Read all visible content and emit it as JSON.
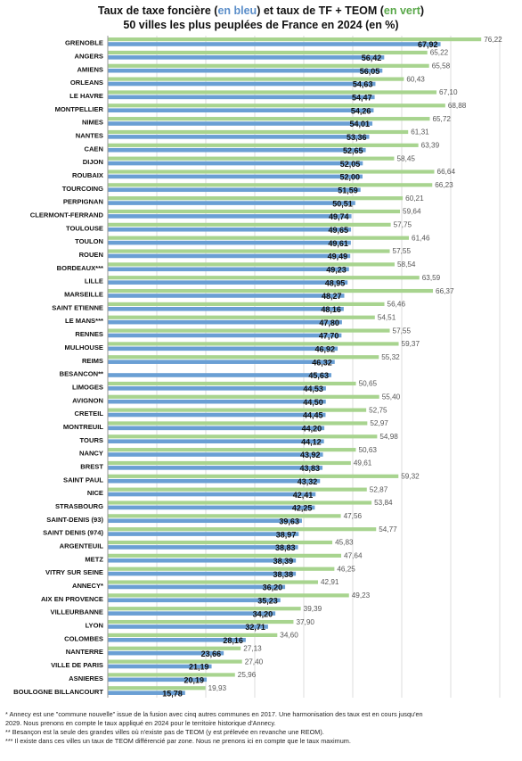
{
  "title": {
    "line1_part1": "Taux de taxe foncière (",
    "line1_blue": "en bleu",
    "line1_part2": ") et taux de TF + TEOM (",
    "line1_green": "en vert",
    "line1_part3": ")",
    "line2": "50 villes les plus peuplées de France en 2024 (en %)"
  },
  "colors": {
    "tf": "#6a9fd4",
    "tf_teom": "#a8d48f",
    "grid": "#dcdcdc"
  },
  "chart_data": {
    "type": "bar",
    "orientation": "horizontal",
    "xlim": [
      0,
      80
    ],
    "grid": true,
    "categories": [
      "GRENOBLE",
      "ANGERS",
      "AMIENS",
      "ORLEANS",
      "LE HAVRE",
      "MONTPELLIER",
      "NIMES",
      "NANTES",
      "CAEN",
      "DIJON",
      "ROUBAIX",
      "TOURCOING",
      "PERPIGNAN",
      "CLERMONT-FERRAND",
      "TOULOUSE",
      "TOULON",
      "ROUEN",
      "BORDEAUX***",
      "LILLE",
      "MARSEILLE",
      "SAINT ETIENNE",
      "LE MANS***",
      "RENNES",
      "MULHOUSE",
      "REIMS",
      "BESANCON**",
      "LIMOGES",
      "AVIGNON",
      "CRETEIL",
      "MONTREUIL",
      "TOURS",
      "NANCY",
      "BREST",
      "SAINT PAUL",
      "NICE",
      "STRASBOURG",
      "SAINT-DENIS (93)",
      "SAINT DENIS (974)",
      "ARGENTEUIL",
      "METZ",
      "VITRY SUR SEINE",
      "ANNECY*",
      "AIX EN PROVENCE",
      "VILLEURBANNE",
      "LYON",
      "COLOMBES",
      "NANTERRE",
      "VILLE DE PARIS",
      "ASNIERES",
      "BOULOGNE BILLANCOURT"
    ],
    "series": [
      {
        "values": [
          67.92,
          56.42,
          56.05,
          54.63,
          54.47,
          54.26,
          54.01,
          53.36,
          52.65,
          52.05,
          52.0,
          51.59,
          50.51,
          49.74,
          49.65,
          49.61,
          49.49,
          49.23,
          48.95,
          48.27,
          48.16,
          47.8,
          47.7,
          46.92,
          46.32,
          45.63,
          44.53,
          44.5,
          44.45,
          44.2,
          44.12,
          43.92,
          43.83,
          43.32,
          42.41,
          42.25,
          39.63,
          38.97,
          38.83,
          38.39,
          38.38,
          36.2,
          35.23,
          34.2,
          32.71,
          28.16,
          23.66,
          21.19,
          20.19,
          15.78
        ],
        "labels": [
          "67,92",
          "56,42",
          "56,05",
          "54,63",
          "54,47",
          "54,26",
          "54,01",
          "53,36",
          "52,65",
          "52,05",
          "52,00",
          "51,59",
          "50,51",
          "49,74",
          "49,65",
          "49,61",
          "49,49",
          "49,23",
          "48,95",
          "48,27",
          "48,16",
          "47,80",
          "47,70",
          "46,92",
          "46,32",
          "45,63",
          "44,53",
          "44,50",
          "44,45",
          "44,20",
          "44,12",
          "43,92",
          "43,83",
          "43,32",
          "42,41",
          "42,25",
          "39,63",
          "38,97",
          "38,83",
          "38,39",
          "38,38",
          "36,20",
          "35,23",
          "34,20",
          "32,71",
          "28,16",
          "23,66",
          "21,19",
          "20,19",
          "15,78"
        ]
      },
      {
        "values": [
          76.22,
          65.22,
          65.58,
          60.43,
          67.1,
          68.88,
          65.72,
          61.31,
          63.39,
          58.45,
          66.64,
          66.23,
          60.21,
          59.64,
          57.75,
          61.46,
          57.55,
          58.54,
          63.59,
          66.37,
          56.46,
          54.51,
          57.55,
          59.37,
          55.32,
          null,
          50.65,
          55.4,
          52.75,
          52.97,
          54.98,
          50.63,
          49.61,
          59.32,
          52.87,
          53.84,
          47.56,
          54.77,
          45.83,
          47.64,
          46.25,
          42.91,
          49.23,
          39.39,
          37.9,
          34.6,
          27.13,
          27.4,
          25.96,
          19.93
        ],
        "labels": [
          "76,22",
          "65,22",
          "65,58",
          "60,43",
          "67,10",
          "68,88",
          "65,72",
          "61,31",
          "63,39",
          "58,45",
          "66,64",
          "66,23",
          "60,21",
          "59,64",
          "57,75",
          "61,46",
          "57,55",
          "58,54",
          "63,59",
          "66,37",
          "56,46",
          "54,51",
          "57,55",
          "59,37",
          "55,32",
          "",
          "50,65",
          "55,40",
          "52,75",
          "52,97",
          "54,98",
          "50,63",
          "49,61",
          "59,32",
          "52,87",
          "53,84",
          "47,56",
          "54,77",
          "45,83",
          "47,64",
          "46,25",
          "42,91",
          "49,23",
          "39,39",
          "37,90",
          "34,60",
          "27,13",
          "27,40",
          "25,96",
          "19,93"
        ]
      }
    ]
  },
  "footnotes": [
    "* Annecy est une \"commune nouvelle\" issue de la fusion avec cinq autres communes en 2017. Une harmonisation des taux est en cours jusqu'en",
    "2029. Nous prenons en compte le taux appliqué en 2024 pour le territoire historique d'Annecy.",
    "** Besançon est la seule des grandes villes où n'existe pas de TEOM (y est prélevée en revanche une REOM).",
    "*** Il existe dans ces villes un taux de TEOM différencié par zone. Nous ne prenons ici en compte que le taux maximum."
  ]
}
